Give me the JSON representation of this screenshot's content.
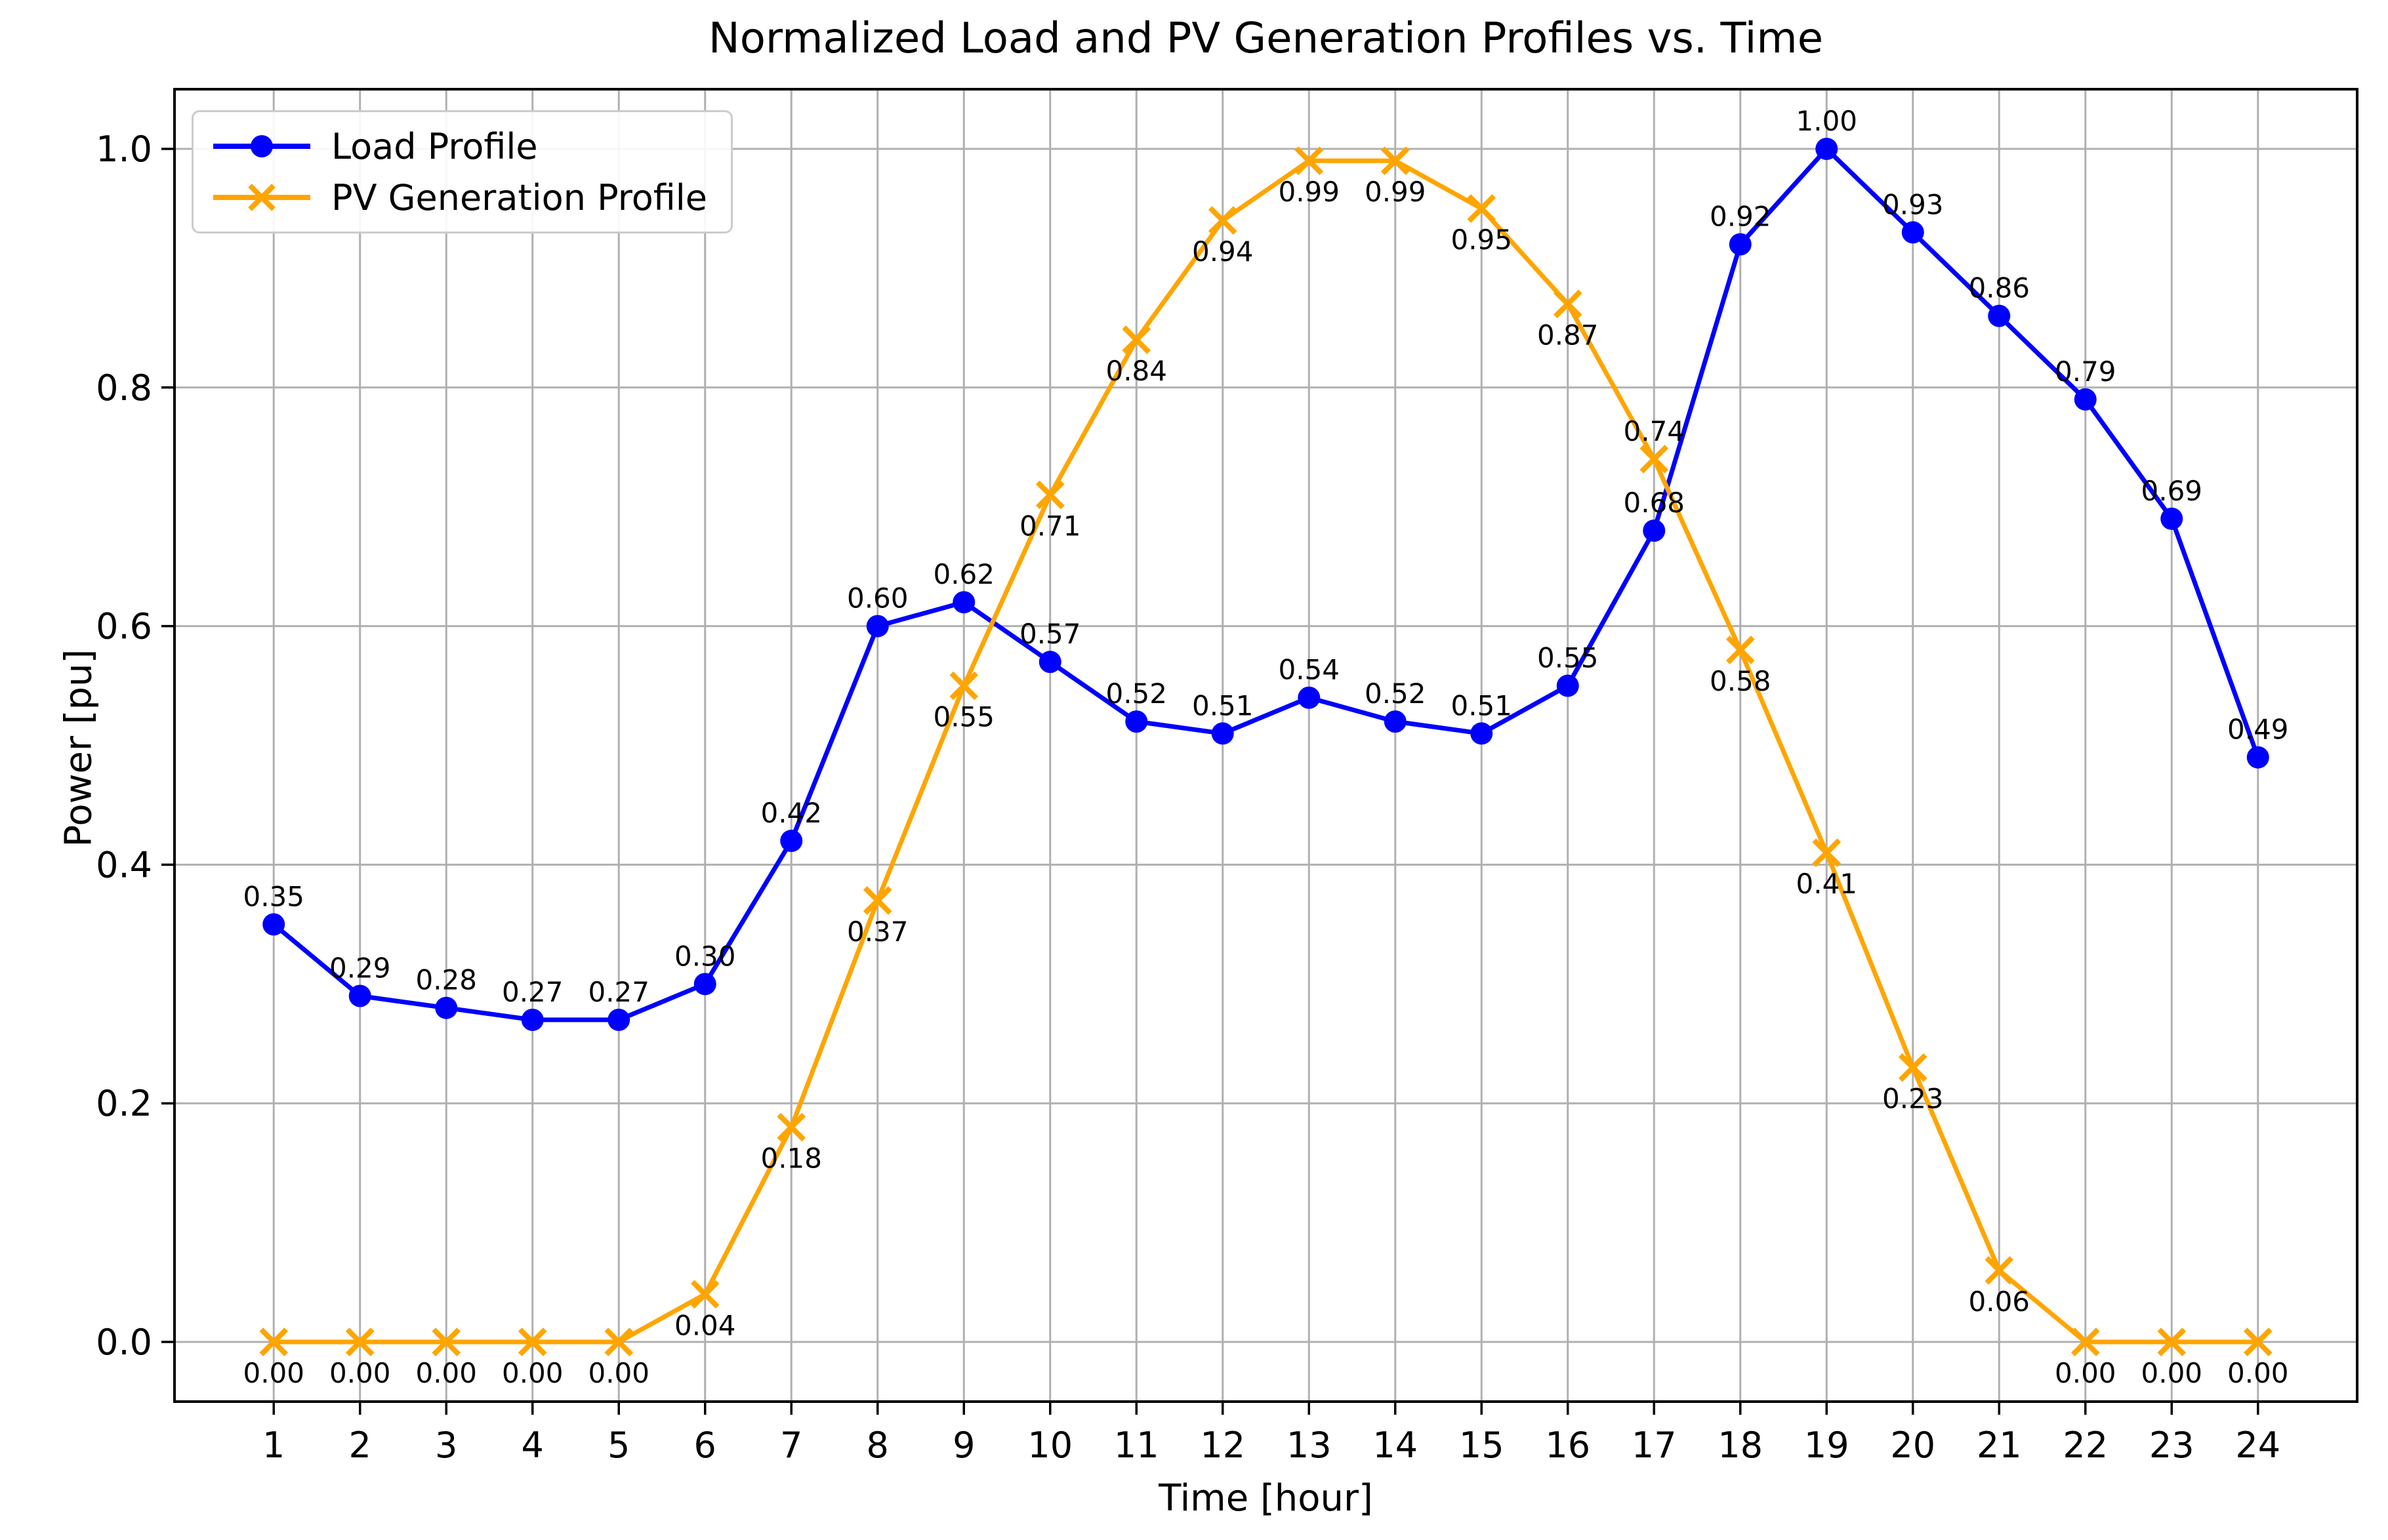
{
  "chart_data": {
    "type": "line",
    "title": "Normalized Load and PV Generation Profiles vs. Time",
    "xlabel": "Time [hour]",
    "ylabel": "Power [pu]",
    "x": [
      1,
      2,
      3,
      4,
      5,
      6,
      7,
      8,
      9,
      10,
      11,
      12,
      13,
      14,
      15,
      16,
      17,
      18,
      19,
      20,
      21,
      22,
      23,
      24
    ],
    "x_tick_labels": [
      "1",
      "2",
      "3",
      "4",
      "5",
      "6",
      "7",
      "8",
      "9",
      "10",
      "11",
      "12",
      "13",
      "14",
      "15",
      "16",
      "17",
      "18",
      "19",
      "20",
      "21",
      "22",
      "23",
      "24"
    ],
    "y_ticks": [
      0.0,
      0.2,
      0.4,
      0.6,
      0.8,
      1.0
    ],
    "y_tick_labels": [
      "0.0",
      "0.2",
      "0.4",
      "0.6",
      "0.8",
      "1.0"
    ],
    "xlim": [
      -0.15,
      25.15
    ],
    "ylim": [
      -0.05,
      1.05
    ],
    "grid": true,
    "grid_color": "#b0b0b0",
    "legend_position": "upper left",
    "point_label_decimals": 2,
    "series": [
      {
        "name": "Load Profile",
        "color": "#0000ff",
        "marker": "circle",
        "values": [
          0.35,
          0.29,
          0.28,
          0.27,
          0.27,
          0.3,
          0.42,
          0.6,
          0.62,
          0.57,
          0.52,
          0.51,
          0.54,
          0.52,
          0.51,
          0.55,
          0.68,
          0.92,
          1.0,
          0.93,
          0.86,
          0.79,
          0.69,
          0.49
        ],
        "label_sides": [
          "above",
          "above",
          "above",
          "above",
          "above",
          "above",
          "above",
          "above",
          "above",
          "above",
          "above",
          "above",
          "above",
          "above",
          "above",
          "above",
          "above",
          "above",
          "above",
          "above",
          "above",
          "above",
          "above",
          "above"
        ]
      },
      {
        "name": "PV Generation Profile",
        "color": "#ffa500",
        "marker": "x",
        "values": [
          0.0,
          0.0,
          0.0,
          0.0,
          0.0,
          0.04,
          0.18,
          0.37,
          0.55,
          0.71,
          0.84,
          0.94,
          0.99,
          0.99,
          0.95,
          0.87,
          0.74,
          0.58,
          0.41,
          0.23,
          0.06,
          0.0,
          0.0,
          0.0
        ],
        "label_sides": [
          "below",
          "below",
          "below",
          "below",
          "below",
          "below",
          "below",
          "below",
          "below",
          "below",
          "below",
          "below",
          "below",
          "below",
          "below",
          "below",
          "above",
          "below",
          "below",
          "below",
          "below",
          "below",
          "below",
          "below"
        ]
      }
    ]
  }
}
